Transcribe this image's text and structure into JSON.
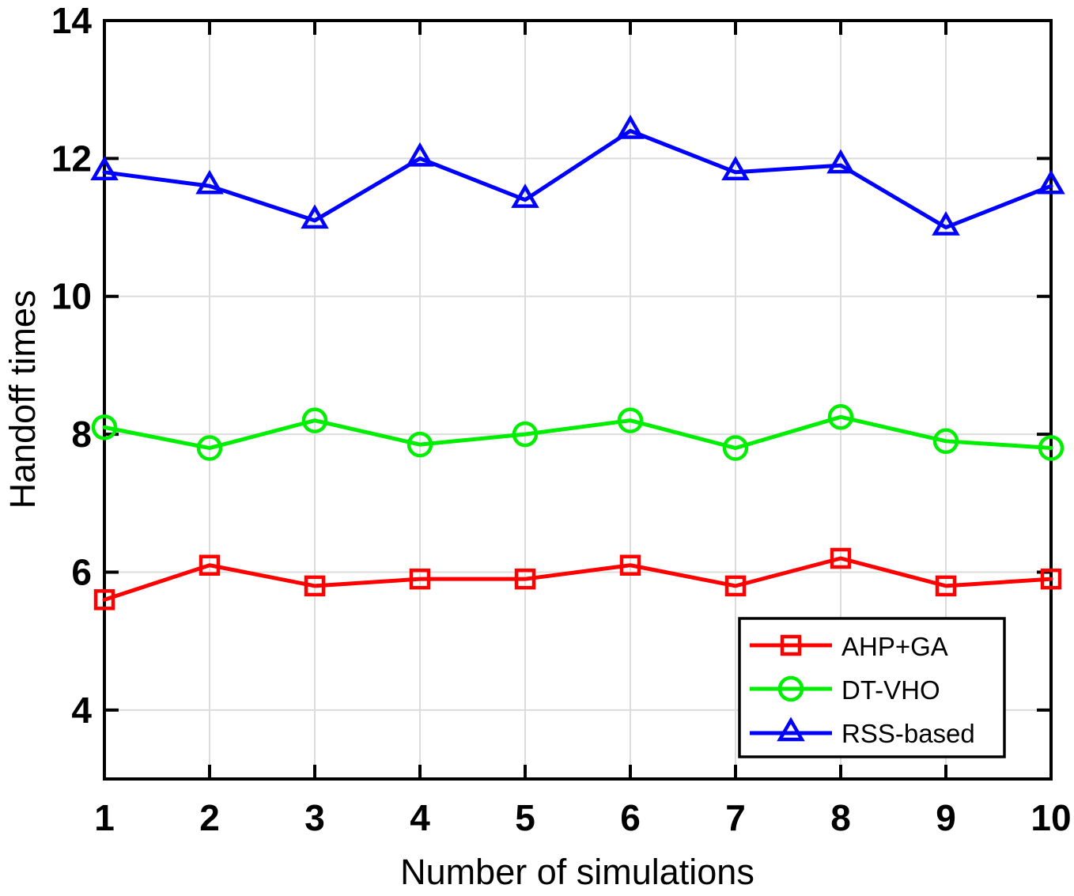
{
  "figure": {
    "background": "#ffffff",
    "axis_color": "#000000",
    "grid_color": "#dcdcdc",
    "legend_border_color": "#000000",
    "legend_background": "#ffffff"
  },
  "chart_data": {
    "type": "line",
    "title": "",
    "xlabel": "Number of simulations",
    "ylabel": "Handoff times",
    "x": [
      1,
      2,
      3,
      4,
      5,
      6,
      7,
      8,
      9,
      10
    ],
    "xlim": [
      1,
      10
    ],
    "ylim": [
      3,
      14
    ],
    "xticks": [
      1,
      2,
      3,
      4,
      5,
      6,
      7,
      8,
      9,
      10
    ],
    "xtick_labels": [
      "1",
      "2",
      "3",
      "4",
      "5",
      "6",
      "7",
      "8",
      "9",
      "10"
    ],
    "yticks": [
      4,
      6,
      8,
      10,
      12,
      14
    ],
    "ytick_labels": [
      "4",
      "6",
      "8",
      "10",
      "12",
      "14"
    ],
    "grid": true,
    "box": true,
    "legend_position": "bottom-right",
    "series": [
      {
        "name": "AHP+GA",
        "color": "#ff0000",
        "marker": "square",
        "values": [
          5.6,
          6.1,
          5.8,
          5.9,
          5.9,
          6.1,
          5.8,
          6.2,
          5.8,
          5.9
        ]
      },
      {
        "name": "DT-VHO",
        "color": "#00ee00",
        "marker": "circle",
        "values": [
          8.1,
          7.8,
          8.2,
          7.85,
          8.0,
          8.2,
          7.8,
          8.25,
          7.9,
          7.8
        ]
      },
      {
        "name": "RSS-based",
        "color": "#0000ff",
        "marker": "triangle-up",
        "values": [
          11.8,
          11.6,
          11.1,
          12.0,
          11.4,
          12.4,
          11.8,
          11.9,
          11.0,
          11.6
        ]
      }
    ]
  }
}
